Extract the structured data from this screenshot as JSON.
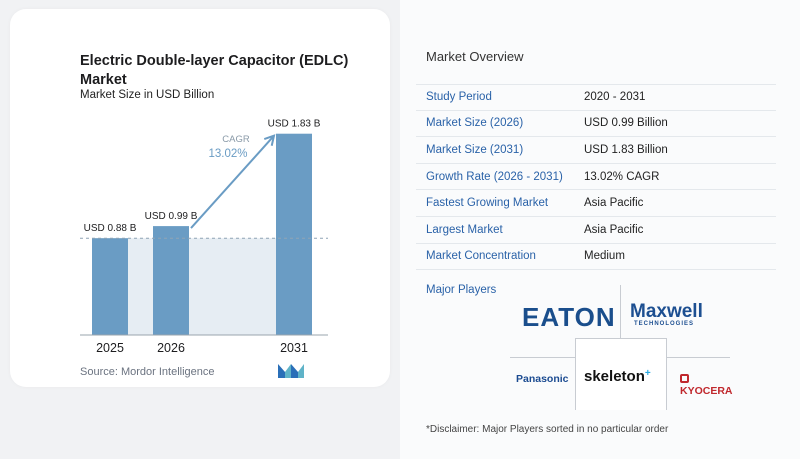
{
  "chart_data": {
    "type": "bar",
    "title": "Electric Double-layer Capacitor (EDLC) Market",
    "subtitle": "Market Size in USD Billion",
    "categories": [
      "2025",
      "2026",
      "2031"
    ],
    "values": [
      0.88,
      0.99,
      1.83
    ],
    "data_labels": [
      "USD 0.88 B",
      "USD 0.99 B",
      "USD 1.83 B"
    ],
    "annotation": {
      "label": "CAGR",
      "value": "13.02%"
    },
    "ylim": [
      0,
      2.0
    ],
    "grid": false
  },
  "colors": {
    "bar": "#6a9cc4",
    "bar_light": "#e6edf3",
    "arrow": "#6a9cc4",
    "label_blue": "#2a62a8"
  },
  "source": "Source: Mordor Intelligence",
  "overview": {
    "title": "Market Overview",
    "rows": [
      {
        "label": "Study Period",
        "value": "2020 - 2031"
      },
      {
        "label": "Market Size (2026)",
        "value": "USD 0.99 Billion"
      },
      {
        "label": "Market Size (2031)",
        "value": "USD 1.83 Billion"
      },
      {
        "label": "Growth Rate (2026 - 2031)",
        "value": "13.02% CAGR"
      },
      {
        "label": "Fastest Growing Market",
        "value": "Asia Pacific"
      },
      {
        "label": "Largest Market",
        "value": "Asia Pacific"
      },
      {
        "label": "Market Concentration",
        "value": "Medium"
      }
    ]
  },
  "major_players": {
    "title": "Major Players",
    "logos": {
      "eaton": "EATON",
      "maxwell": "Maxwell",
      "maxwell_sub": "TECHNOLOGIES",
      "panasonic": "Panasonic",
      "skeleton": "skeleton",
      "kyocera": "KYOCERA"
    }
  },
  "disclaimer": "*Disclaimer: Major Players sorted in no particular order"
}
